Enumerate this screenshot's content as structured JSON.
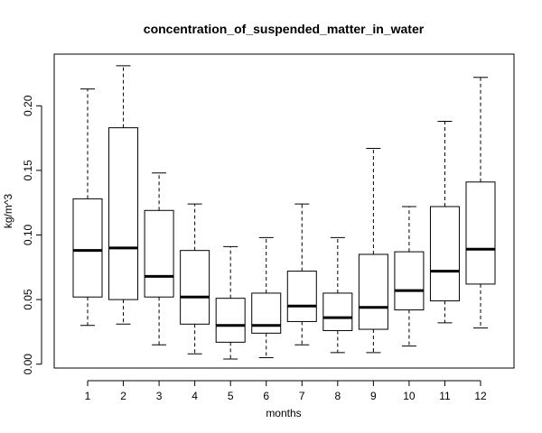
{
  "chart_data": {
    "type": "boxplot",
    "title": "concentration_of_suspended_matter_in_water",
    "xlabel": "months",
    "ylabel": "kg/m^3",
    "ylim": [
      -0.003,
      0.24
    ],
    "yticks": [
      "0.00",
      "0.05",
      "0.10",
      "0.15",
      "0.20"
    ],
    "categories": [
      "1",
      "2",
      "3",
      "4",
      "5",
      "6",
      "7",
      "8",
      "9",
      "10",
      "11",
      "12"
    ],
    "boxes": [
      {
        "min": 0.03,
        "q1": 0.052,
        "median": 0.088,
        "q3": 0.128,
        "max": 0.213
      },
      {
        "min": 0.031,
        "q1": 0.05,
        "median": 0.09,
        "q3": 0.183,
        "max": 0.231
      },
      {
        "min": 0.015,
        "q1": 0.052,
        "median": 0.068,
        "q3": 0.119,
        "max": 0.148
      },
      {
        "min": 0.008,
        "q1": 0.031,
        "median": 0.052,
        "q3": 0.088,
        "max": 0.124
      },
      {
        "min": 0.004,
        "q1": 0.017,
        "median": 0.03,
        "q3": 0.051,
        "max": 0.091
      },
      {
        "min": 0.005,
        "q1": 0.024,
        "median": 0.03,
        "q3": 0.055,
        "max": 0.098
      },
      {
        "min": 0.015,
        "q1": 0.033,
        "median": 0.045,
        "q3": 0.072,
        "max": 0.124
      },
      {
        "min": 0.009,
        "q1": 0.026,
        "median": 0.036,
        "q3": 0.055,
        "max": 0.098
      },
      {
        "min": 0.009,
        "q1": 0.027,
        "median": 0.044,
        "q3": 0.085,
        "max": 0.167
      },
      {
        "min": 0.014,
        "q1": 0.042,
        "median": 0.057,
        "q3": 0.087,
        "max": 0.122
      },
      {
        "min": 0.032,
        "q1": 0.049,
        "median": 0.072,
        "q3": 0.122,
        "max": 0.188
      },
      {
        "min": 0.028,
        "q1": 0.062,
        "median": 0.089,
        "q3": 0.141,
        "max": 0.222
      }
    ],
    "grid": false,
    "legend": "none"
  }
}
